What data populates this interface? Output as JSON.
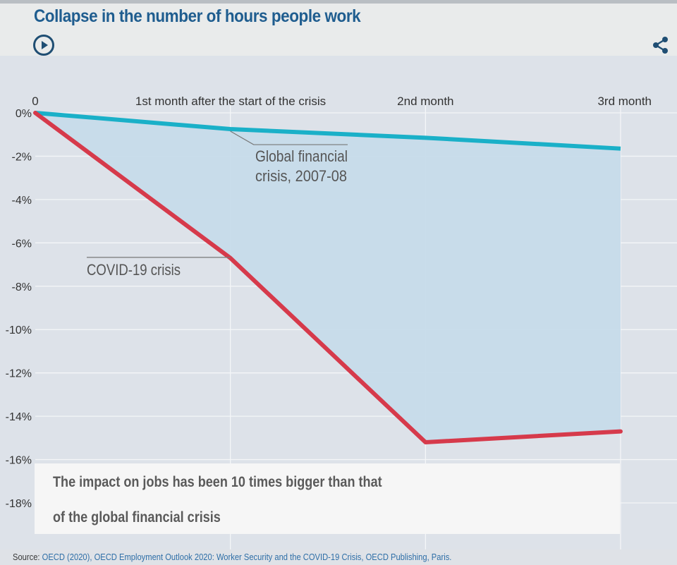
{
  "header": {
    "title": "Collapse in the number of hours people work",
    "play_icon": "play-circle-icon",
    "share_icon": "share-icon"
  },
  "colors": {
    "covid": "#d63a4b",
    "gfc": "#1ab0c8",
    "area": "#c6dbea",
    "title": "#1f5d8f"
  },
  "chart_data": {
    "type": "line",
    "x": [
      0,
      1,
      2,
      3
    ],
    "x_tick_labels": [
      "0",
      "1st month after the start of the crisis",
      "2nd month",
      "3rd month"
    ],
    "y_tick_labels": [
      "0%",
      "-2%",
      "-4%",
      "-6%",
      "-8%",
      "-10%",
      "-12%",
      "-14%",
      "-16%",
      "-18%"
    ],
    "y_ticks": [
      0,
      -2,
      -4,
      -6,
      -8,
      -10,
      -12,
      -14,
      -16,
      -18
    ],
    "ylim": [
      -18,
      0
    ],
    "x_axis_position": "top",
    "grid": true,
    "series": [
      {
        "name": "Global financial crisis, 2007-08",
        "label_lines": [
          "Global financial",
          "crisis, 2007-08"
        ],
        "values": [
          0,
          -0.75,
          -1.15,
          -1.65
        ]
      },
      {
        "name": "COVID-19 crisis",
        "label_lines": [
          "COVID-19 crisis"
        ],
        "values": [
          0,
          -6.7,
          -15.2,
          -14.7
        ]
      }
    ],
    "shaded_between_series": true
  },
  "callout": {
    "line1": "The impact on jobs has been 10 times bigger than that",
    "line2": "of the global financial crisis"
  },
  "footer": {
    "source_prefix": "Source: ",
    "source_link": "OECD (2020), OECD Employment Outlook 2020: Worker Security and the COVID-19 Crisis, OECD Publishing, Paris."
  }
}
